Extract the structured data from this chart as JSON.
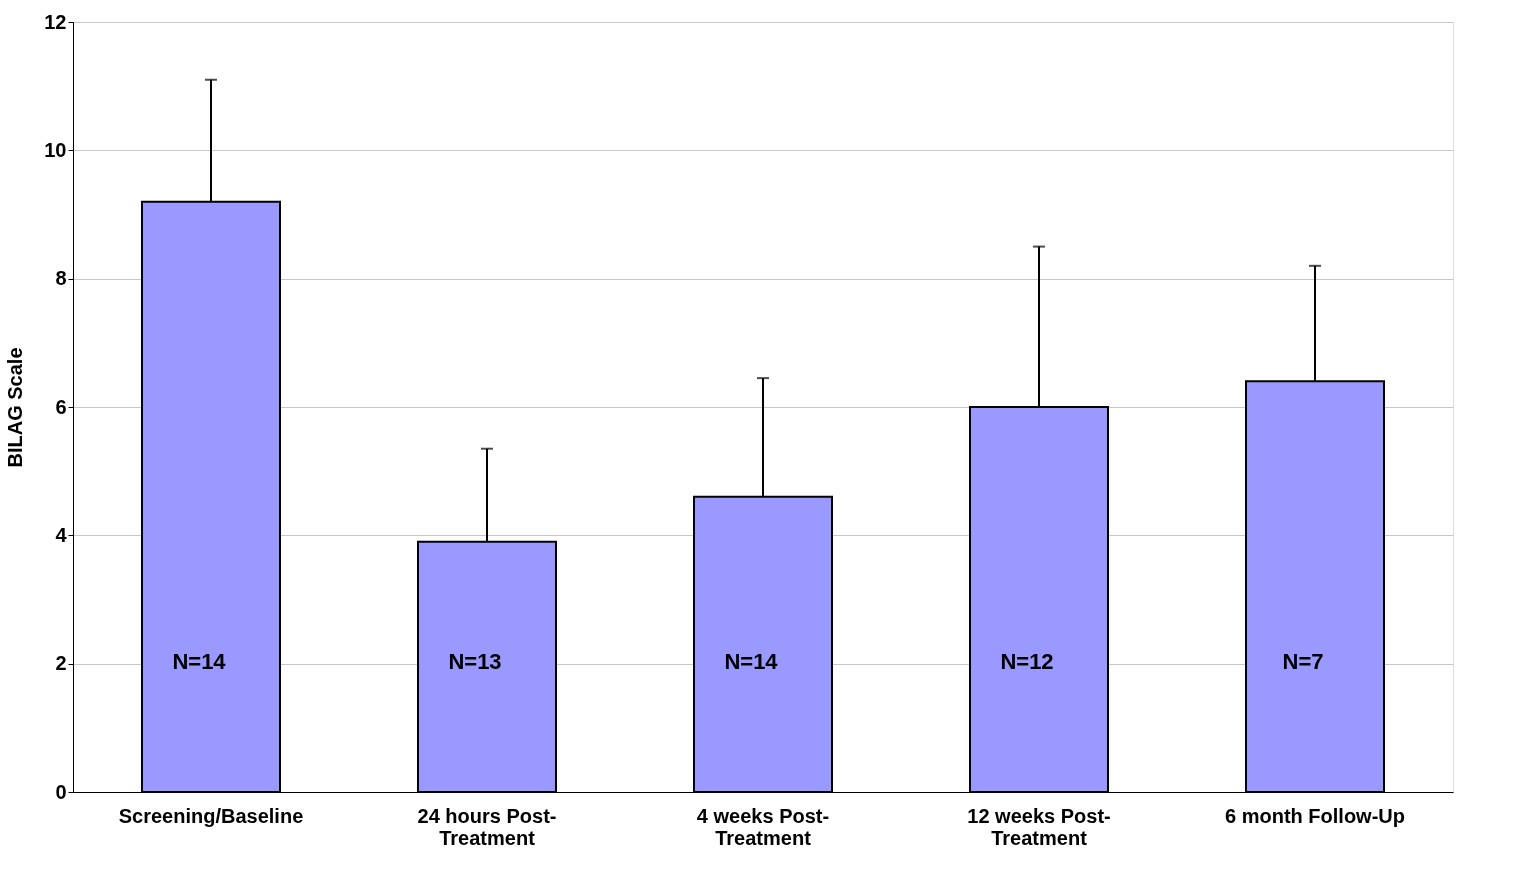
{
  "chart_data": {
    "type": "bar",
    "ylabel": "BILAG Scale",
    "categories": [
      "Screening/Baseline",
      "24 hours Post-Treatment",
      "4 weeks Post-Treatment",
      "12 weeks Post-Treatment",
      "6 month Follow-Up"
    ],
    "values": [
      9.2,
      3.9,
      4.6,
      6.0,
      6.4
    ],
    "errors": [
      [
        9.2,
        11.1
      ],
      [
        3.9,
        5.35
      ],
      [
        4.6,
        6.45
      ],
      [
        6.0,
        8.5
      ],
      [
        6.4,
        8.2
      ]
    ],
    "color": "#9999ff",
    "ylim": [
      0,
      12
    ],
    "yticks": [
      0,
      2,
      4,
      6,
      8,
      10,
      12
    ],
    "grid": "y",
    "annotations": [
      "N=14",
      "N=13",
      "N=14",
      "N=12",
      "N=7"
    ]
  }
}
